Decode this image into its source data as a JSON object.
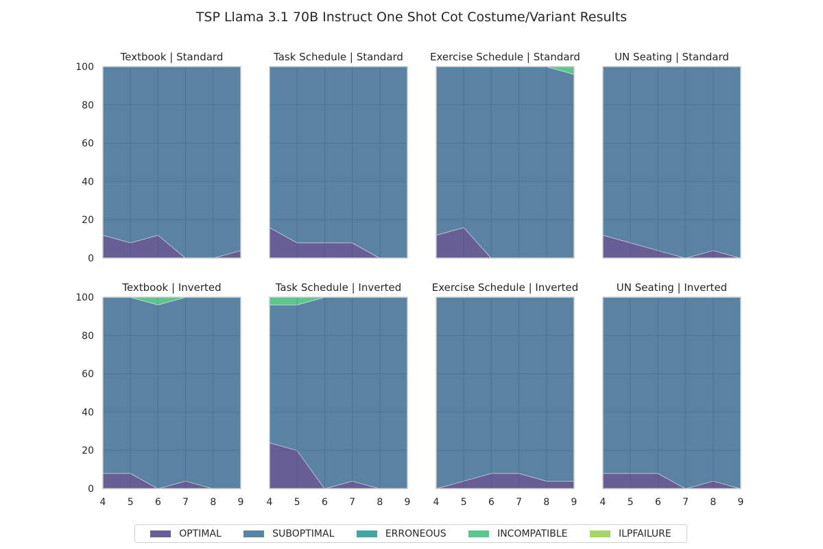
{
  "chart_data": {
    "type": "area",
    "stacked": true,
    "title": "TSP Llama 3.1 70B Instruct One Shot Cot Costume/Variant Results",
    "x": [
      4,
      5,
      6,
      7,
      8,
      9
    ],
    "xticks": [
      "4",
      "5",
      "6",
      "7",
      "8",
      "9"
    ],
    "ylim": [
      0,
      100
    ],
    "yticks": [
      "0",
      "20",
      "40",
      "60",
      "80",
      "100"
    ],
    "series_names": [
      "OPTIMAL",
      "SUBOPTIMAL",
      "ERRONEOUS",
      "INCOMPATIBLE",
      "ILPFAILURE"
    ],
    "colors": {
      "OPTIMAL": "#675f94",
      "SUBOPTIMAL": "#5a83a3",
      "ERRONEOUS": "#4ba39f",
      "INCOMPATIBLE": "#5cc68c",
      "ILPFAILURE": "#a4d66b"
    },
    "legend_position": "bottom-center",
    "panels": [
      {
        "title": "Textbook | Standard",
        "series": [
          {
            "name": "OPTIMAL",
            "values": [
              12,
              8,
              12,
              0,
              0,
              4
            ]
          },
          {
            "name": "SUBOPTIMAL",
            "values": [
              88,
              92,
              88,
              100,
              100,
              96
            ]
          },
          {
            "name": "ERRONEOUS",
            "values": [
              0,
              0,
              0,
              0,
              0,
              0
            ]
          },
          {
            "name": "INCOMPATIBLE",
            "values": [
              0,
              0,
              0,
              0,
              0,
              0
            ]
          },
          {
            "name": "ILPFAILURE",
            "values": [
              0,
              0,
              0,
              0,
              0,
              0
            ]
          }
        ]
      },
      {
        "title": "Task Schedule | Standard",
        "series": [
          {
            "name": "OPTIMAL",
            "values": [
              16,
              8,
              8,
              8,
              0,
              0
            ]
          },
          {
            "name": "SUBOPTIMAL",
            "values": [
              84,
              92,
              92,
              92,
              100,
              100
            ]
          },
          {
            "name": "ERRONEOUS",
            "values": [
              0,
              0,
              0,
              0,
              0,
              0
            ]
          },
          {
            "name": "INCOMPATIBLE",
            "values": [
              0,
              0,
              0,
              0,
              0,
              0
            ]
          },
          {
            "name": "ILPFAILURE",
            "values": [
              0,
              0,
              0,
              0,
              0,
              0
            ]
          }
        ]
      },
      {
        "title": "Exercise Schedule | Standard",
        "series": [
          {
            "name": "OPTIMAL",
            "values": [
              12,
              16,
              0,
              0,
              0,
              0
            ]
          },
          {
            "name": "SUBOPTIMAL",
            "values": [
              88,
              84,
              100,
              100,
              100,
              96
            ]
          },
          {
            "name": "ERRONEOUS",
            "values": [
              0,
              0,
              0,
              0,
              0,
              0
            ]
          },
          {
            "name": "INCOMPATIBLE",
            "values": [
              0,
              0,
              0,
              0,
              0,
              4
            ]
          },
          {
            "name": "ILPFAILURE",
            "values": [
              0,
              0,
              0,
              0,
              0,
              0
            ]
          }
        ]
      },
      {
        "title": "UN Seating | Standard",
        "series": [
          {
            "name": "OPTIMAL",
            "values": [
              12,
              8,
              4,
              0,
              4,
              0
            ]
          },
          {
            "name": "SUBOPTIMAL",
            "values": [
              88,
              92,
              96,
              100,
              96,
              100
            ]
          },
          {
            "name": "ERRONEOUS",
            "values": [
              0,
              0,
              0,
              0,
              0,
              0
            ]
          },
          {
            "name": "INCOMPATIBLE",
            "values": [
              0,
              0,
              0,
              0,
              0,
              0
            ]
          },
          {
            "name": "ILPFAILURE",
            "values": [
              0,
              0,
              0,
              0,
              0,
              0
            ]
          }
        ]
      },
      {
        "title": "Textbook | Inverted",
        "series": [
          {
            "name": "OPTIMAL",
            "values": [
              8,
              8,
              0,
              4,
              0,
              0
            ]
          },
          {
            "name": "SUBOPTIMAL",
            "values": [
              92,
              92,
              96,
              96,
              100,
              100
            ]
          },
          {
            "name": "ERRONEOUS",
            "values": [
              0,
              0,
              0,
              0,
              0,
              0
            ]
          },
          {
            "name": "INCOMPATIBLE",
            "values": [
              0,
              0,
              4,
              0,
              0,
              0
            ]
          },
          {
            "name": "ILPFAILURE",
            "values": [
              0,
              0,
              0,
              0,
              0,
              0
            ]
          }
        ]
      },
      {
        "title": "Task Schedule | Inverted",
        "series": [
          {
            "name": "OPTIMAL",
            "values": [
              24,
              20,
              0,
              4,
              0,
              0
            ]
          },
          {
            "name": "SUBOPTIMAL",
            "values": [
              72,
              76,
              100,
              96,
              100,
              100
            ]
          },
          {
            "name": "ERRONEOUS",
            "values": [
              0,
              0,
              0,
              0,
              0,
              0
            ]
          },
          {
            "name": "INCOMPATIBLE",
            "values": [
              4,
              4,
              0,
              0,
              0,
              0
            ]
          },
          {
            "name": "ILPFAILURE",
            "values": [
              0,
              0,
              0,
              0,
              0,
              0
            ]
          }
        ]
      },
      {
        "title": "Exercise Schedule | Inverted",
        "series": [
          {
            "name": "OPTIMAL",
            "values": [
              0,
              4,
              8,
              8,
              4,
              4
            ]
          },
          {
            "name": "SUBOPTIMAL",
            "values": [
              100,
              96,
              92,
              92,
              96,
              96
            ]
          },
          {
            "name": "ERRONEOUS",
            "values": [
              0,
              0,
              0,
              0,
              0,
              0
            ]
          },
          {
            "name": "INCOMPATIBLE",
            "values": [
              0,
              0,
              0,
              0,
              0,
              0
            ]
          },
          {
            "name": "ILPFAILURE",
            "values": [
              0,
              0,
              0,
              0,
              0,
              0
            ]
          }
        ]
      },
      {
        "title": "UN Seating | Inverted",
        "series": [
          {
            "name": "OPTIMAL",
            "values": [
              8,
              8,
              8,
              0,
              4,
              0
            ]
          },
          {
            "name": "SUBOPTIMAL",
            "values": [
              92,
              92,
              92,
              100,
              96,
              100
            ]
          },
          {
            "name": "ERRONEOUS",
            "values": [
              0,
              0,
              0,
              0,
              0,
              0
            ]
          },
          {
            "name": "INCOMPATIBLE",
            "values": [
              0,
              0,
              0,
              0,
              0,
              0
            ]
          },
          {
            "name": "ILPFAILURE",
            "values": [
              0,
              0,
              0,
              0,
              0,
              0
            ]
          }
        ]
      }
    ]
  }
}
